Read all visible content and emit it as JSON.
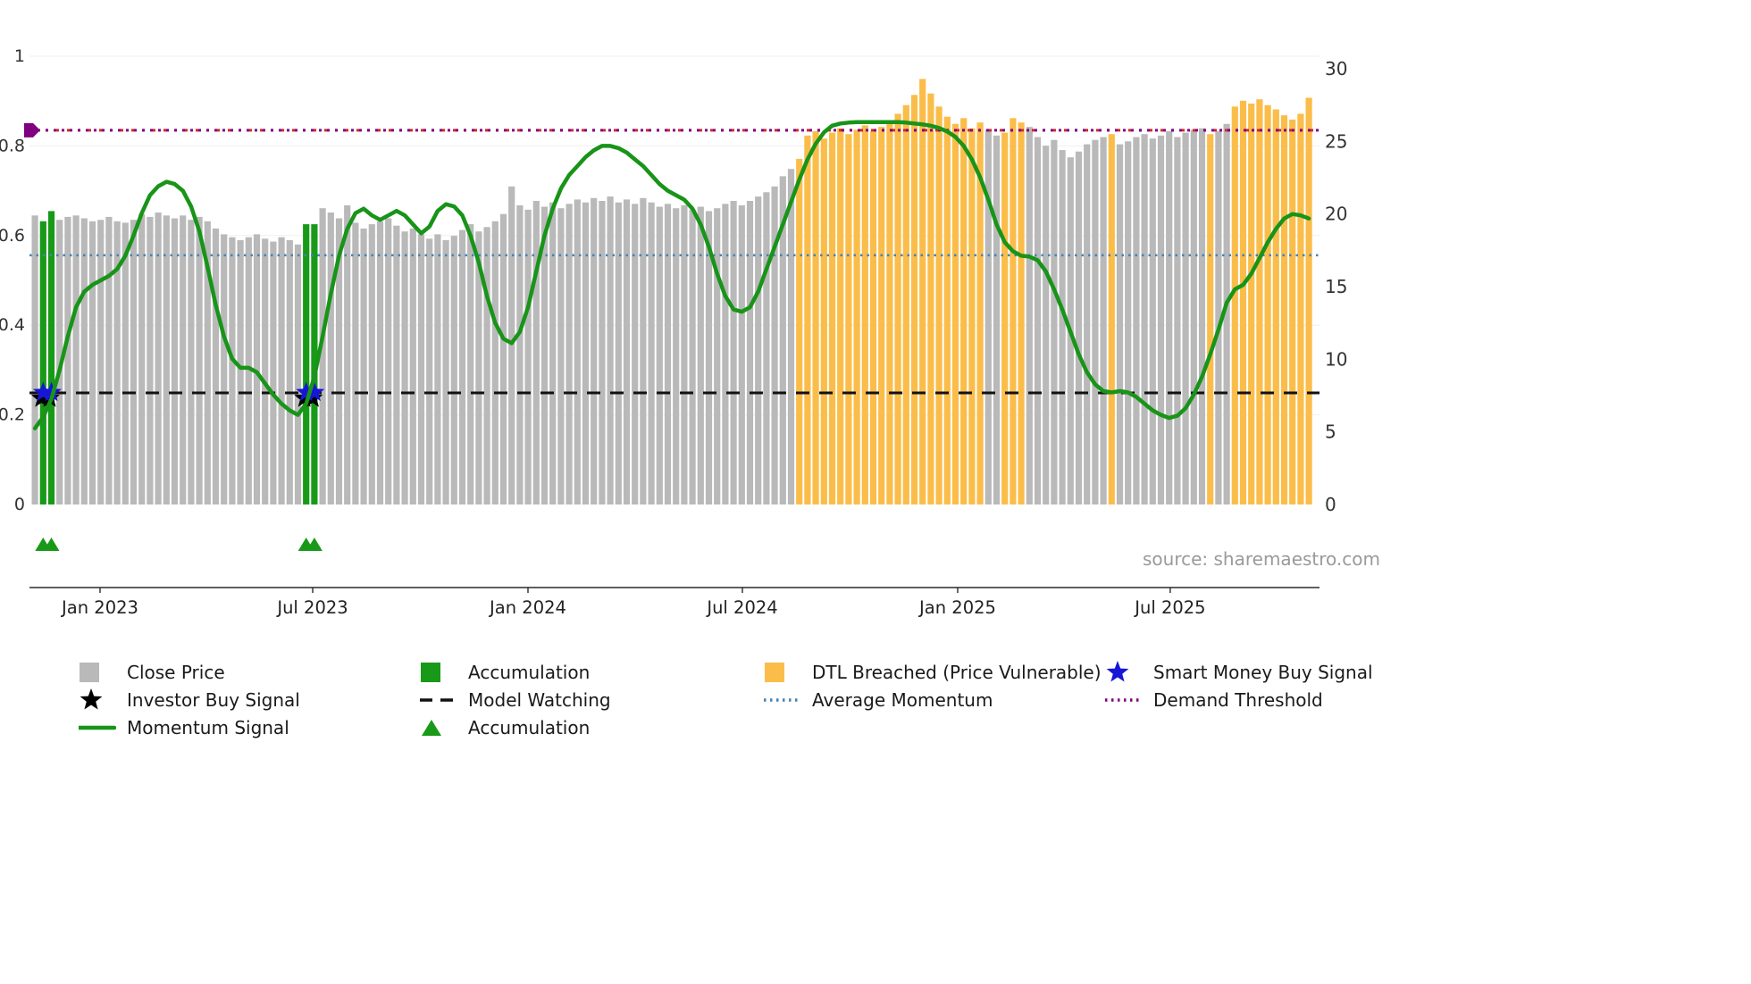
{
  "meta": {
    "source_text": "source: sharemaestro.com"
  },
  "colors": {
    "close_price": "#b9b9b9",
    "accumulation": "#189a18",
    "dtl_breached": "#fbbd4a",
    "momentum_line": "#189418",
    "avg_momentum": "#4682b4",
    "model_watching": "#111111",
    "demand_threshold": "#800080",
    "demand_underlay": "#d62728",
    "smart_money_star": "#1616d6",
    "investor_star": "#000000",
    "grid": "#efefef",
    "axis_text": "#333333",
    "spine": "#2b2b2b"
  },
  "chart_data": {
    "type": "bar+line",
    "title": "",
    "left_axis": {
      "range": [
        0,
        1
      ],
      "ticks": [
        {
          "label": "0",
          "v": 0
        },
        {
          "label": "0.2",
          "v": 0.2
        },
        {
          "label": "0.4",
          "v": 0.4
        },
        {
          "label": "0.6",
          "v": 0.6
        },
        {
          "label": "0.8",
          "v": 0.8
        },
        {
          "label": "1",
          "v": 1
        }
      ]
    },
    "right_axis": {
      "range": [
        0,
        30
      ],
      "ticks": [
        {
          "label": "0",
          "v": 0
        },
        {
          "label": "5",
          "v": 5
        },
        {
          "label": "10",
          "v": 10
        },
        {
          "label": "15",
          "v": 15
        },
        {
          "label": "20",
          "v": 20
        },
        {
          "label": "25",
          "v": 25
        },
        {
          "label": "30",
          "v": 30
        }
      ]
    },
    "x_axis": {
      "ticks": [
        {
          "label": "Jan 2023",
          "pos": 0.0547
        },
        {
          "label": "Jul 2023",
          "pos": 0.2195
        },
        {
          "label": "Jan 2024",
          "pos": 0.3864
        },
        {
          "label": "Jul 2024",
          "pos": 0.5526
        },
        {
          "label": "Jan 2025",
          "pos": 0.7195
        },
        {
          "label": "Jul 2025",
          "pos": 0.8843
        }
      ]
    },
    "bars": {
      "name": "Close Price (weekly)",
      "axis": "right",
      "color_key": {
        "g": "close_price",
        "a": "accumulation",
        "o": "dtl_breached"
      },
      "colors": "gaaggggggggggggggggggggggggggggggaaggggggggggggggggggggggggggggggggggggggggggggggggggggggggggoooooooooooooooooooooooggoooggggggggggogggggggggggoggooooooooooo",
      "values": [
        19.9,
        19.5,
        20.2,
        19.6,
        19.8,
        19.9,
        19.7,
        19.5,
        19.6,
        19.8,
        19.5,
        19.4,
        19.6,
        20.0,
        19.8,
        20.1,
        19.9,
        19.7,
        19.9,
        19.6,
        19.8,
        19.5,
        19.0,
        18.6,
        18.4,
        18.2,
        18.4,
        18.6,
        18.3,
        18.1,
        18.4,
        18.2,
        17.9,
        19.3,
        19.3,
        20.4,
        20.1,
        19.7,
        20.6,
        19.4,
        19.0,
        19.3,
        19.5,
        19.7,
        19.2,
        18.8,
        19.0,
        18.6,
        18.3,
        18.6,
        18.2,
        18.5,
        18.9,
        19.3,
        18.8,
        19.1,
        19.5,
        20.0,
        21.9,
        20.6,
        20.3,
        20.9,
        20.5,
        20.8,
        20.4,
        20.7,
        21.0,
        20.8,
        21.1,
        20.9,
        21.2,
        20.8,
        21.0,
        20.7,
        21.1,
        20.8,
        20.5,
        20.7,
        20.4,
        20.6,
        20.3,
        20.5,
        20.2,
        20.4,
        20.7,
        20.9,
        20.6,
        20.9,
        21.2,
        21.5,
        21.9,
        22.6,
        23.1,
        23.8,
        25.4,
        25.7,
        25.2,
        25.6,
        25.9,
        25.5,
        25.8,
        26.1,
        25.7,
        26.0,
        26.4,
        26.9,
        27.5,
        28.2,
        29.3,
        28.3,
        27.4,
        26.7,
        26.2,
        26.6,
        25.9,
        26.3,
        25.8,
        25.4,
        25.6,
        26.6,
        26.3,
        26.0,
        25.3,
        24.7,
        25.1,
        24.4,
        23.9,
        24.3,
        24.8,
        25.1,
        25.3,
        25.5,
        24.8,
        25.0,
        25.3,
        25.5,
        25.2,
        25.4,
        25.7,
        25.3,
        25.6,
        25.8,
        25.9,
        25.5,
        25.7,
        26.2,
        27.4,
        27.8,
        27.6,
        27.9,
        27.5,
        27.2,
        26.8,
        26.5,
        26.9,
        28.0
      ]
    },
    "momentum": {
      "name": "Momentum Signal",
      "axis": "left",
      "values": [
        0.17,
        0.195,
        0.235,
        0.3,
        0.375,
        0.44,
        0.475,
        0.49,
        0.5,
        0.51,
        0.525,
        0.555,
        0.6,
        0.65,
        0.69,
        0.71,
        0.72,
        0.715,
        0.7,
        0.665,
        0.61,
        0.53,
        0.445,
        0.375,
        0.325,
        0.305,
        0.305,
        0.295,
        0.27,
        0.245,
        0.225,
        0.21,
        0.2,
        0.225,
        0.285,
        0.375,
        0.47,
        0.555,
        0.615,
        0.65,
        0.66,
        0.645,
        0.635,
        0.645,
        0.655,
        0.645,
        0.625,
        0.605,
        0.62,
        0.655,
        0.67,
        0.665,
        0.645,
        0.6,
        0.54,
        0.465,
        0.405,
        0.37,
        0.36,
        0.385,
        0.44,
        0.52,
        0.6,
        0.66,
        0.705,
        0.735,
        0.755,
        0.775,
        0.79,
        0.8,
        0.8,
        0.795,
        0.785,
        0.77,
        0.755,
        0.735,
        0.715,
        0.7,
        0.69,
        0.68,
        0.66,
        0.625,
        0.575,
        0.515,
        0.465,
        0.435,
        0.43,
        0.44,
        0.475,
        0.525,
        0.575,
        0.625,
        0.675,
        0.725,
        0.77,
        0.805,
        0.83,
        0.845,
        0.85,
        0.852,
        0.853,
        0.853,
        0.853,
        0.853,
        0.853,
        0.853,
        0.852,
        0.85,
        0.848,
        0.845,
        0.84,
        0.832,
        0.82,
        0.8,
        0.77,
        0.73,
        0.68,
        0.625,
        0.585,
        0.565,
        0.555,
        0.553,
        0.545,
        0.52,
        0.48,
        0.435,
        0.385,
        0.335,
        0.295,
        0.268,
        0.253,
        0.25,
        0.253,
        0.25,
        0.24,
        0.225,
        0.21,
        0.2,
        0.193,
        0.198,
        0.215,
        0.245,
        0.285,
        0.335,
        0.39,
        0.45,
        0.48,
        0.49,
        0.515,
        0.55,
        0.585,
        0.615,
        0.638,
        0.648,
        0.645,
        0.638
      ]
    },
    "ref_lines": {
      "demand_threshold": {
        "label": "Demand Threshold",
        "value": 0.835
      },
      "average_momentum": {
        "label": "Average Momentum",
        "value": 0.556
      },
      "model_watching": {
        "label": "Model Watching",
        "value": 0.249
      }
    },
    "signals": {
      "smart_money_buy": {
        "label": "Smart Money Buy Signal",
        "indices": [
          1,
          2,
          33,
          34
        ],
        "value": 0.25
      },
      "investor_buy": {
        "label": "Investor Buy Signal",
        "indices": [
          1,
          2,
          33,
          34
        ],
        "value": 0.243
      },
      "accumulation_markers": {
        "label": "Accumulation",
        "indices": [
          1,
          2,
          33,
          34
        ]
      }
    }
  },
  "legend": {
    "rows": [
      [
        {
          "marker": "square",
          "color": "close_price",
          "label": "Close Price"
        },
        {
          "marker": "square",
          "color": "accumulation",
          "label": "Accumulation"
        },
        {
          "marker": "square",
          "color": "dtl_breached",
          "label": "DTL Breached (Price Vulnerable)"
        },
        {
          "marker": "star",
          "color": "smart_money_star",
          "label": "Smart Money Buy Signal"
        }
      ],
      [
        {
          "marker": "star",
          "color": "investor_star",
          "label": "Investor Buy Signal"
        },
        {
          "marker": "dash",
          "color": "model_watching",
          "label": "Model Watching"
        },
        {
          "marker": "dotted",
          "color": "avg_momentum",
          "label": "Average Momentum"
        },
        {
          "marker": "dotted",
          "color": "demand_threshold",
          "label": "Demand Threshold"
        }
      ],
      [
        {
          "marker": "line",
          "color": "momentum_line",
          "label": "Momentum Signal"
        },
        {
          "marker": "triangle",
          "color": "accumulation",
          "label": "Accumulation"
        },
        null,
        null
      ]
    ]
  }
}
